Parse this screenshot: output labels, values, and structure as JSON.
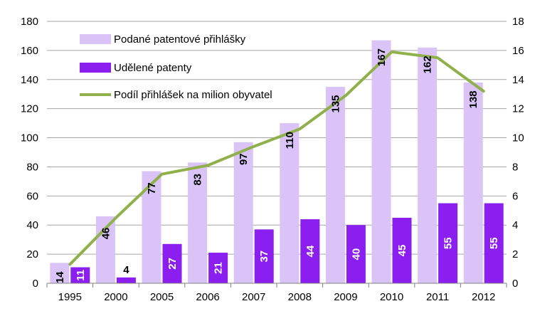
{
  "chart_data": {
    "type": "bar",
    "categories": [
      "1995",
      "2000",
      "2005",
      "2006",
      "2007",
      "2008",
      "2009",
      "2010",
      "2011",
      "2012"
    ],
    "series": [
      {
        "name": "Podané patentové přihlášky",
        "kind": "bar",
        "axis": "left",
        "color": "#d9c3f7",
        "values": [
          14,
          46,
          77,
          83,
          97,
          110,
          135,
          167,
          162,
          138
        ],
        "labels": [
          "14",
          "46",
          "77",
          "83",
          "97",
          "110",
          "135",
          "167",
          "162",
          "138"
        ]
      },
      {
        "name": "Udělené patenty",
        "kind": "bar",
        "axis": "left",
        "color": "#8b1ff0",
        "values": [
          11,
          4,
          27,
          21,
          37,
          44,
          40,
          45,
          55,
          55
        ],
        "labels": [
          "11",
          "4",
          "27",
          "21",
          "37",
          "44",
          "40",
          "45",
          "55",
          "55"
        ]
      },
      {
        "name": "Podíl přihlášek na milion obyvatel",
        "kind": "line",
        "axis": "right",
        "color": "#8fb04b",
        "values": [
          1.3,
          4.5,
          7.5,
          8.1,
          9.4,
          10.6,
          12.9,
          15.9,
          15.5,
          13.2
        ]
      }
    ],
    "ylim": [
      0,
      180
    ],
    "y_ticks": [
      "0",
      "20",
      "40",
      "60",
      "80",
      "100",
      "120",
      "140",
      "160",
      "180"
    ],
    "y2lim": [
      0,
      18
    ],
    "y2_ticks": [
      "0",
      "2",
      "4",
      "6",
      "8",
      "10",
      "12",
      "14",
      "16",
      "18"
    ],
    "grid": true,
    "legend": "top-left"
  }
}
